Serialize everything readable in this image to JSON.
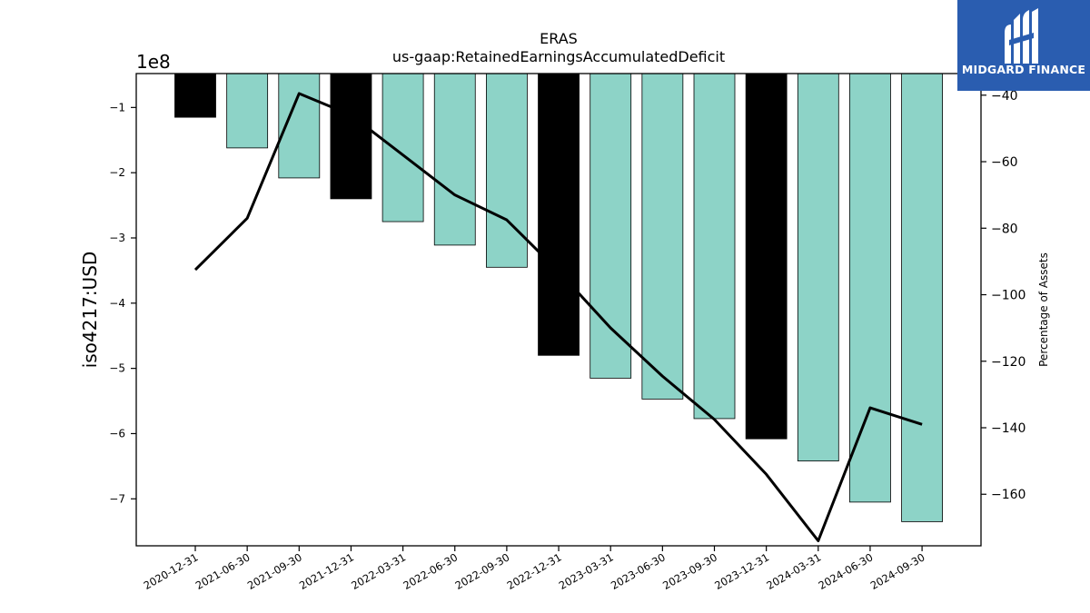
{
  "logo": {
    "text": "MIDGARD FINANCE",
    "color": "#2a5db0",
    "icon": "midgard-logo-icon"
  },
  "chart_data": {
    "type": "bar",
    "title": "ERAS",
    "subtitle": "us-gaap:RetainedEarningsAccumulatedDeficit",
    "ylabel": "iso4217:USD",
    "y_offset_label": "1e8",
    "y2label": "Percentage of Assets",
    "categories": [
      "2020-12-31",
      "2021-06-30",
      "2021-09-30",
      "2021-12-31",
      "2022-03-31",
      "2022-06-30",
      "2022-09-30",
      "2022-12-31",
      "2023-03-31",
      "2023-06-30",
      "2023-09-30",
      "2023-12-31",
      "2024-03-31",
      "2024-06-30",
      "2024-09-30"
    ],
    "series": [
      {
        "type": "bar",
        "axis": "left",
        "values": [
          -1.15,
          -1.62,
          -2.08,
          -2.4,
          -2.75,
          -3.11,
          -3.45,
          -4.8,
          -5.15,
          -5.47,
          -5.77,
          -6.08,
          -6.42,
          -7.05,
          -7.35
        ],
        "colors": [
          "#000000",
          "#8dd3c7",
          "#8dd3c7",
          "#000000",
          "#8dd3c7",
          "#8dd3c7",
          "#8dd3c7",
          "#000000",
          "#8dd3c7",
          "#8dd3c7",
          "#8dd3c7",
          "#000000",
          "#8dd3c7",
          "#8dd3c7",
          "#8dd3c7"
        ]
      },
      {
        "type": "line",
        "axis": "right",
        "color": "#000000",
        "values": [
          -92.5,
          -77,
          -39.5,
          -46,
          -58,
          -70,
          -77.5,
          -93,
          -110,
          -124.5,
          -137.5,
          -154,
          -174,
          -134,
          -139
        ]
      }
    ],
    "ylim": [
      -7.72,
      -0.48
    ],
    "y2lim": [
      -175.5,
      -33.5
    ],
    "yticks": [
      -1,
      -2,
      -3,
      -4,
      -5,
      -6,
      -7
    ],
    "ytick_labels": [
      "−1",
      "−2",
      "−3",
      "−4",
      "−5",
      "−6",
      "−7"
    ],
    "y2ticks": [
      -40,
      -60,
      -80,
      -100,
      -120,
      -140,
      -160
    ],
    "y2tick_labels": [
      "−40",
      "−60",
      "−80",
      "−100",
      "−120",
      "−140",
      "−160"
    ],
    "grid": false,
    "legend": "none"
  }
}
